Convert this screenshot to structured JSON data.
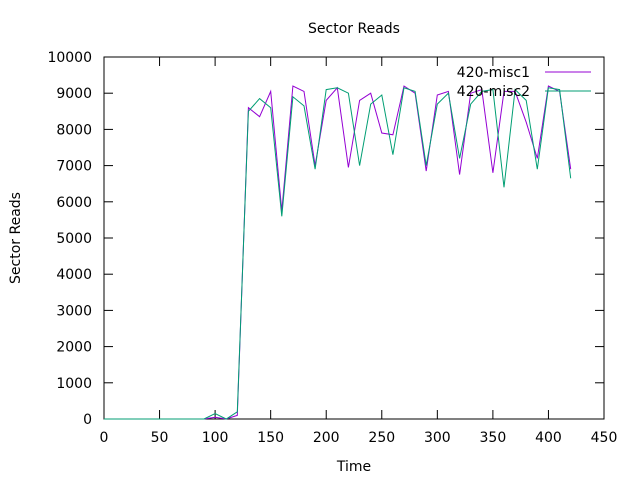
{
  "chart_data": {
    "type": "line",
    "title": "Sector Reads",
    "xlabel": "Time",
    "ylabel": "Sector Reads",
    "xlim": [
      0,
      450
    ],
    "ylim": [
      0,
      10000
    ],
    "xticks": [
      0,
      50,
      100,
      150,
      200,
      250,
      300,
      350,
      400,
      450
    ],
    "yticks": [
      0,
      1000,
      2000,
      3000,
      4000,
      5000,
      6000,
      7000,
      8000,
      9000,
      10000
    ],
    "grid": false,
    "legend_position": "top-right",
    "series": [
      {
        "name": "420-misc1",
        "color": "#9400d3",
        "x": [
          0,
          10,
          20,
          30,
          40,
          50,
          60,
          70,
          80,
          90,
          100,
          110,
          120,
          130,
          140,
          150,
          160,
          170,
          180,
          190,
          200,
          210,
          220,
          230,
          240,
          250,
          260,
          270,
          280,
          290,
          300,
          310,
          320,
          330,
          340,
          350,
          360,
          370,
          380,
          390,
          400,
          410,
          420
        ],
        "y": [
          0,
          0,
          0,
          0,
          0,
          0,
          0,
          0,
          0,
          0,
          50,
          0,
          100,
          8600,
          8350,
          9050,
          5750,
          9200,
          9050,
          7000,
          8800,
          9150,
          6950,
          8800,
          9000,
          7900,
          7850,
          9200,
          9000,
          6850,
          8950,
          9050,
          6750,
          9000,
          9100,
          6800,
          9050,
          9050,
          8200,
          7200,
          9200,
          9050,
          6900
        ]
      },
      {
        "name": "420-misc2",
        "color": "#009e73",
        "x": [
          0,
          10,
          20,
          30,
          40,
          50,
          60,
          70,
          80,
          90,
          100,
          110,
          120,
          130,
          140,
          150,
          160,
          170,
          180,
          190,
          200,
          210,
          220,
          230,
          240,
          250,
          260,
          270,
          280,
          290,
          300,
          310,
          320,
          330,
          340,
          350,
          360,
          370,
          380,
          390,
          400,
          410,
          420
        ],
        "y": [
          0,
          0,
          0,
          0,
          0,
          0,
          0,
          0,
          0,
          0,
          150,
          0,
          200,
          8500,
          8850,
          8600,
          5600,
          8900,
          8650,
          6900,
          9100,
          9150,
          9000,
          7000,
          8700,
          8950,
          7300,
          9150,
          9050,
          7000,
          8700,
          9000,
          7200,
          8700,
          9050,
          9100,
          6400,
          9100,
          8800,
          6900,
          9150,
          9100,
          6650
        ]
      }
    ]
  }
}
